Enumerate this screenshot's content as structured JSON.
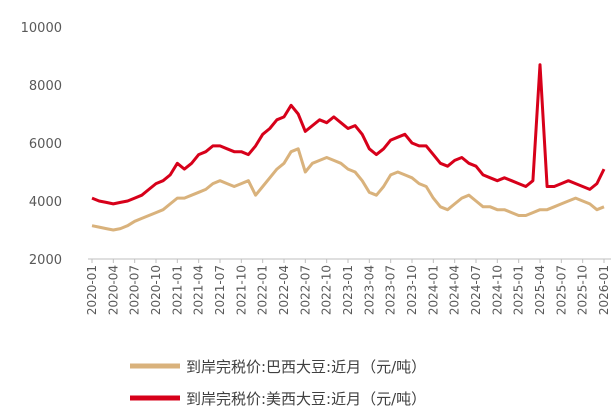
{
  "chart_data": {
    "type": "line",
    "x": [
      "2020-01",
      "2020-02",
      "2020-03",
      "2020-04",
      "2020-05",
      "2020-06",
      "2020-07",
      "2020-08",
      "2020-09",
      "2020-10",
      "2020-11",
      "2020-12",
      "2021-01",
      "2021-02",
      "2021-03",
      "2021-04",
      "2021-05",
      "2021-06",
      "2021-07",
      "2021-08",
      "2021-09",
      "2021-10",
      "2021-11",
      "2021-12",
      "2022-01",
      "2022-02",
      "2022-03",
      "2022-04",
      "2022-05",
      "2022-06",
      "2022-07",
      "2022-08",
      "2022-09",
      "2022-10",
      "2022-11",
      "2022-12",
      "2023-01",
      "2023-02",
      "2023-03",
      "2023-04",
      "2023-05",
      "2023-06",
      "2023-07",
      "2023-08",
      "2023-09",
      "2023-10",
      "2023-11",
      "2023-12",
      "2024-01",
      "2024-02",
      "2024-03",
      "2024-04",
      "2024-05",
      "2024-06",
      "2024-07",
      "2024-08",
      "2024-09",
      "2024-10",
      "2024-11",
      "2024-12",
      "2025-01",
      "2025-02",
      "2025-03",
      "2025-04",
      "2025-05",
      "2025-06",
      "2025-07",
      "2025-08",
      "2025-09",
      "2025-10",
      "2025-11",
      "2025-12",
      "2026-01"
    ],
    "series": [
      {
        "name": "到岸完税价:巴西大豆:近月（元/吨）",
        "color": "#d9b27c",
        "values": [
          3150,
          3100,
          3050,
          3000,
          3050,
          3150,
          3300,
          3400,
          3500,
          3600,
          3700,
          3900,
          4100,
          4100,
          4200,
          4300,
          4400,
          4600,
          4700,
          4600,
          4500,
          4600,
          4700,
          4200,
          4500,
          4800,
          5100,
          5300,
          5700,
          5800,
          5000,
          5300,
          5400,
          5500,
          5400,
          5300,
          5100,
          5000,
          4700,
          4300,
          4200,
          4500,
          4900,
          5000,
          4900,
          4800,
          4600,
          4500,
          4100,
          3800,
          3700,
          3900,
          4100,
          4200,
          4000,
          3800,
          3800,
          3700,
          3700,
          3600,
          3500,
          3500,
          3600,
          3700,
          3700,
          3800,
          3900,
          4000,
          4100,
          4000,
          3900,
          3700,
          3800
        ]
      },
      {
        "name": "到岸完税价:美西大豆:近月（元/吨）",
        "color": "#d7001a",
        "values": [
          4100,
          4000,
          3950,
          3900,
          3950,
          4000,
          4100,
          4200,
          4400,
          4600,
          4700,
          4900,
          5300,
          5100,
          5300,
          5600,
          5700,
          5900,
          5900,
          5800,
          5700,
          5700,
          5600,
          5900,
          6300,
          6500,
          6800,
          6900,
          7300,
          7000,
          6400,
          6600,
          6800,
          6700,
          6900,
          6700,
          6500,
          6600,
          6300,
          5800,
          5600,
          5800,
          6100,
          6200,
          6300,
          6000,
          5900,
          5900,
          5600,
          5300,
          5200,
          5400,
          5500,
          5300,
          5200,
          4900,
          4800,
          4700,
          4800,
          4700,
          4600,
          4500,
          4700,
          8700,
          4500,
          4500,
          4600,
          4700,
          4600,
          4500,
          4400,
          4600,
          5100
        ]
      }
    ],
    "xticks": [
      "2020-01",
      "2020-04",
      "2020-07",
      "2020-10",
      "2021-01",
      "2021-04",
      "2021-07",
      "2021-10",
      "2022-01",
      "2022-04",
      "2022-07",
      "2022-10",
      "2023-01",
      "2023-04",
      "2023-07",
      "2023-10",
      "2024-01",
      "2024-04",
      "2024-07",
      "2024-10",
      "2025-01",
      "2025-04",
      "2025-07",
      "2025-10",
      "2026-01"
    ],
    "ylim": [
      2000,
      10000
    ],
    "yticks": [
      2000,
      4000,
      6000,
      8000,
      10000
    ],
    "grid": false
  }
}
